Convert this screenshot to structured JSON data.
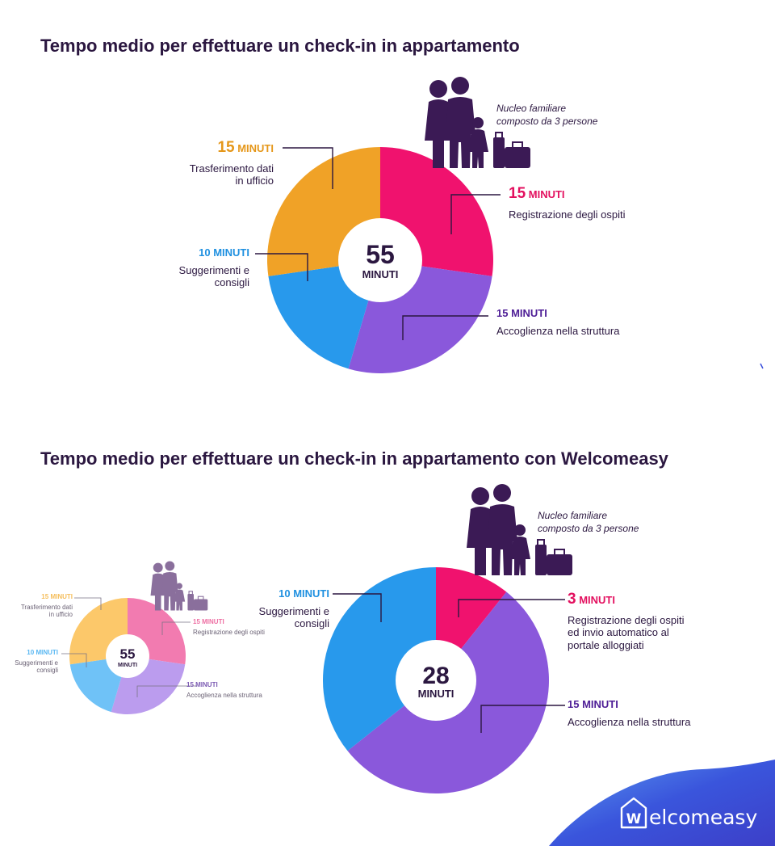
{
  "colors": {
    "orange": "#F0A227",
    "pink": "#F0126E",
    "purple": "#8A58DB",
    "blue": "#2899EC",
    "purple_text": "#4E1E96",
    "blue_text": "#1F90E0",
    "pink_text": "#E3105F",
    "orange_text": "#E5971A",
    "dark": "#2B1740",
    "brand_blue": "#3A4FDC"
  },
  "top": {
    "title": "Tempo medio per effettuare un check-in in appartamento",
    "note": [
      "Nucleo familiare",
      "composto da 3 persone"
    ],
    "center_value": "55",
    "center_unit": "MINUTI",
    "labels": {
      "transfer": {
        "value": "15",
        "unit": "MINUTI",
        "desc": [
          "Trasferimento dati",
          "in ufficio"
        ]
      },
      "registration": {
        "value": "15",
        "unit": "MINUTI",
        "desc": [
          "Registrazione degli ospiti"
        ]
      },
      "tips": {
        "value": "10",
        "unit": "MINUTI",
        "desc": [
          "Suggerimenti e",
          "consigli"
        ]
      },
      "welcome": {
        "value": "15",
        "unit": "MINUTI",
        "desc": [
          "Accoglienza nella struttura"
        ]
      }
    }
  },
  "small": {
    "center_value": "55",
    "center_unit": "MINUTI",
    "labels": {
      "transfer": {
        "value": "15",
        "unit": "MINUTI",
        "desc": [
          "Trasferimento dati",
          "in ufficio"
        ]
      },
      "registration": {
        "value": "15",
        "unit": "MINUTI",
        "desc": [
          "Registrazione degli ospiti"
        ]
      },
      "tips": {
        "value": "10",
        "unit": "MINUTI",
        "desc": [
          "Suggerimenti e",
          "consigli"
        ]
      },
      "welcome": {
        "value": "15",
        "unit": "MINUTI",
        "desc": [
          "Accoglienza nella struttura"
        ]
      }
    }
  },
  "bottom": {
    "title": "Tempo medio per effettuare un check-in in appartamento con Welcomeasy",
    "note": [
      "Nucleo familiare",
      "composto da 3 persone"
    ],
    "center_value": "28",
    "center_unit": "MINUTI",
    "labels": {
      "tips": {
        "value": "10",
        "unit": "MINUTI",
        "desc": [
          "Suggerimenti e",
          "consigli"
        ]
      },
      "registration": {
        "value": "3",
        "unit": "MINUTI",
        "desc": [
          "Registrazione degli ospiti",
          "ed invio automatico al",
          "portale alloggiati"
        ]
      },
      "welcome": {
        "value": "15",
        "unit": "MINUTI",
        "desc": [
          "Accoglienza nella struttura"
        ]
      }
    }
  },
  "brand": {
    "name": "elcomeasy",
    "logo_letter": "W"
  },
  "chart_data": [
    {
      "type": "pie",
      "title": "Tempo medio per effettuare un check-in in appartamento",
      "total": 55,
      "unit": "MINUTI",
      "slices": [
        {
          "label": "Registrazione degli ospiti",
          "value": 15,
          "color": "#F0126E"
        },
        {
          "label": "Accoglienza nella struttura",
          "value": 15,
          "color": "#8A58DB"
        },
        {
          "label": "Suggerimenti e consigli",
          "value": 10,
          "color": "#2899EC"
        },
        {
          "label": "Trasferimento dati in ufficio",
          "value": 15,
          "color": "#F0A227"
        }
      ]
    },
    {
      "type": "pie",
      "title": "",
      "total": 55,
      "unit": "MINUTI",
      "slices": [
        {
          "label": "Registrazione degli ospiti",
          "value": 15,
          "color": "#F27BB0"
        },
        {
          "label": "Accoglienza nella struttura",
          "value": 15,
          "color": "#BB9CEE"
        },
        {
          "label": "Suggerimenti e consigli",
          "value": 10,
          "color": "#6FC2F7"
        },
        {
          "label": "Trasferimento dati in ufficio",
          "value": 15,
          "color": "#FCC86A"
        }
      ]
    },
    {
      "type": "pie",
      "title": "Tempo medio per effettuare un check-in in appartamento con Welcomeasy",
      "total": 28,
      "unit": "MINUTI",
      "slices": [
        {
          "label": "Registrazione degli ospiti ed invio automatico al portale alloggiati",
          "value": 3,
          "color": "#F0126E"
        },
        {
          "label": "Accoglienza nella struttura",
          "value": 15,
          "color": "#8A58DB"
        },
        {
          "label": "Suggerimenti e consigli",
          "value": 10,
          "color": "#2899EC"
        }
      ]
    }
  ]
}
